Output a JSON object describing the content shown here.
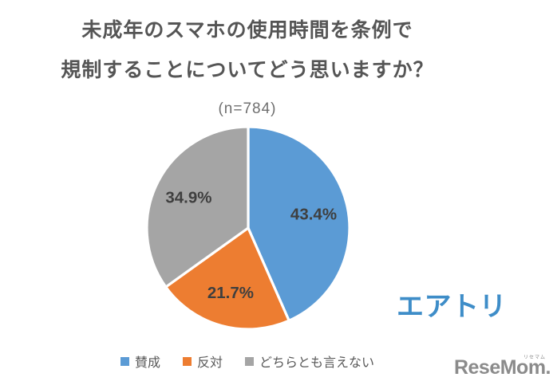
{
  "header": {
    "title_line1": "未成年のスマホの使用時間を条例で",
    "title_line2": "規制することについてどう思いますか？",
    "sample_size": "(n=784)"
  },
  "branding": {
    "airtri_logo": "エアトリ",
    "resemom_logo": "ReseMom.",
    "resemom_kana": "リセマム"
  },
  "chart_data": {
    "type": "pie",
    "title": "未成年のスマホの使用時間を条例で規制することについてどう思いますか？",
    "sample_label": "(n=784)",
    "direction": "clockwise",
    "start_angle_deg": 0,
    "legend_position": "bottom",
    "slice_border_color": "#FFFFFF",
    "label_color": "#3f3f3f",
    "series": [
      {
        "key": "agree",
        "label": "賛成",
        "value": 43.4,
        "display": "43.4%",
        "color": "#5B9BD5"
      },
      {
        "key": "disagree",
        "label": "反対",
        "value": 21.7,
        "display": "21.7%",
        "color": "#ED7D31"
      },
      {
        "key": "neutral",
        "label": "どちらとも言えない",
        "value": 34.9,
        "display": "34.9%",
        "color": "#A5A5A5"
      }
    ]
  }
}
